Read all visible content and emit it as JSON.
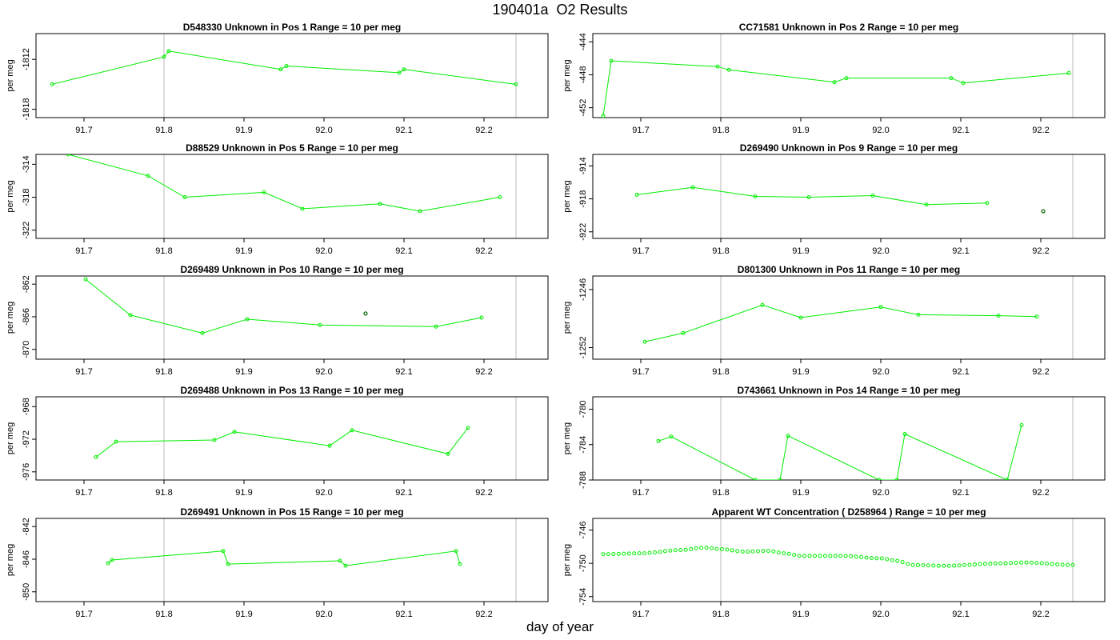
{
  "title": "190401a  O2 Results",
  "xlabel": "day of year",
  "colors": {
    "series": "#00ee00",
    "outlier": "#006400",
    "axis": "#000000",
    "refline": "#bbbbbb"
  },
  "chart_data": [
    {
      "type": "line",
      "sample_id": "D548330",
      "label": "Unknown in Pos 1",
      "range_text": "Range = 10 per meg",
      "ylabel": "per meg",
      "xlim": [
        91.64,
        92.28
      ],
      "ylim": [
        -1819,
        -1808.9
      ],
      "xticks": [
        91.7,
        91.8,
        91.9,
        92.0,
        92.1,
        92.2
      ],
      "yticks": [
        -1812,
        -1818
      ],
      "ref_x": [
        91.8,
        92.24
      ],
      "points": [
        [
          91.66,
          -1815
        ],
        [
          91.8,
          -1811.7
        ],
        [
          91.806,
          -1811
        ],
        [
          91.946,
          -1813.2
        ],
        [
          91.953,
          -1812.8
        ],
        [
          92.094,
          -1813.6
        ],
        [
          92.1,
          -1813.2
        ],
        [
          92.24,
          -1815
        ]
      ],
      "outliers": []
    },
    {
      "type": "line",
      "sample_id": "CC71581",
      "label": "Unknown in Pos 2",
      "range_text": "Range = 10 per meg",
      "ylabel": "per meg",
      "xlim": [
        91.64,
        92.28
      ],
      "ylim": [
        -453.2,
        -443
      ],
      "xticks": [
        91.7,
        91.8,
        91.9,
        92.0,
        92.1,
        92.2
      ],
      "yticks": [
        -444,
        -448,
        -452
      ],
      "ref_x": [
        91.8,
        92.24
      ],
      "points": [
        [
          91.653,
          -453
        ],
        [
          91.663,
          -446.3
        ],
        [
          91.796,
          -447
        ],
        [
          91.81,
          -447.4
        ],
        [
          91.942,
          -448.9
        ],
        [
          91.957,
          -448.4
        ],
        [
          92.088,
          -448.4
        ],
        [
          92.103,
          -449
        ],
        [
          92.235,
          -447.8
        ]
      ],
      "outliers": []
    },
    {
      "type": "line",
      "sample_id": "D88529",
      "label": "Unknown in Pos 5",
      "range_text": "Range = 10 per meg",
      "ylabel": "per meg",
      "xlim": [
        91.64,
        92.28
      ],
      "ylim": [
        -323,
        -312.8
      ],
      "xticks": [
        91.7,
        91.8,
        91.9,
        92.0,
        92.1,
        92.2
      ],
      "yticks": [
        -314,
        -318,
        -322
      ],
      "ref_x": [
        91.8,
        92.24
      ],
      "points": [
        [
          91.68,
          -312.8
        ],
        [
          91.78,
          -315.4
        ],
        [
          91.826,
          -318
        ],
        [
          91.925,
          -317.4
        ],
        [
          91.973,
          -319.4
        ],
        [
          92.07,
          -318.8
        ],
        [
          92.12,
          -319.7
        ],
        [
          92.22,
          -318
        ]
      ],
      "outliers": []
    },
    {
      "type": "line",
      "sample_id": "D269490",
      "label": "Unknown in Pos 9",
      "range_text": "Range = 10 per meg",
      "ylabel": "per meg",
      "xlim": [
        91.64,
        92.28
      ],
      "ylim": [
        -922.8,
        -912.6
      ],
      "xticks": [
        91.7,
        91.8,
        91.9,
        92.0,
        92.1,
        92.2
      ],
      "yticks": [
        -914,
        -918,
        -922
      ],
      "ref_x": [
        91.8,
        92.24
      ],
      "points": [
        [
          91.695,
          -917.5
        ],
        [
          91.765,
          -916.6
        ],
        [
          91.843,
          -917.7
        ],
        [
          91.91,
          -917.8
        ],
        [
          91.99,
          -917.6
        ],
        [
          92.057,
          -918.7
        ],
        [
          92.133,
          -918.5
        ]
      ],
      "outliers": [
        [
          92.203,
          -919.5
        ]
      ]
    },
    {
      "type": "line",
      "sample_id": "D269489",
      "label": "Unknown in Pos 10",
      "range_text": "Range = 10 per meg",
      "ylabel": "per meg",
      "xlim": [
        91.64,
        92.28
      ],
      "ylim": [
        -871.2,
        -861
      ],
      "xticks": [
        91.7,
        91.8,
        91.9,
        92.0,
        92.1,
        92.2
      ],
      "yticks": [
        -862,
        -866,
        -870
      ],
      "ref_x": [
        91.8,
        92.24
      ],
      "points": [
        [
          91.702,
          -861.4
        ],
        [
          91.758,
          -865.8
        ],
        [
          91.848,
          -868
        ],
        [
          91.904,
          -866.3
        ],
        [
          91.995,
          -867
        ],
        [
          92.14,
          -867.2
        ],
        [
          92.197,
          -866.1
        ]
      ],
      "outliers": [
        [
          92.052,
          -865.6
        ]
      ]
    },
    {
      "type": "line",
      "sample_id": "D801300",
      "label": "Unknown in Pos 11",
      "range_text": "Range = 10 per meg",
      "ylabel": "per meg",
      "xlim": [
        91.64,
        92.28
      ],
      "ylim": [
        -1253.2,
        -1244.6
      ],
      "xticks": [
        91.7,
        91.8,
        91.9,
        92.0,
        92.1,
        92.2
      ],
      "yticks": [
        -1246,
        -1252
      ],
      "ref_x": [
        91.8,
        92.24
      ],
      "points": [
        [
          91.705,
          -1251.4
        ],
        [
          91.753,
          -1250.5
        ],
        [
          91.852,
          -1247.6
        ],
        [
          91.9,
          -1248.9
        ],
        [
          92.0,
          -1247.8
        ],
        [
          92.047,
          -1248.6
        ],
        [
          92.147,
          -1248.7
        ],
        [
          92.195,
          -1248.8
        ]
      ],
      "outliers": []
    },
    {
      "type": "line",
      "sample_id": "D269488",
      "label": "Unknown in Pos 13",
      "range_text": "Range = 10 per meg",
      "ylabel": "per meg",
      "xlim": [
        91.64,
        92.28
      ],
      "ylim": [
        -977,
        -966.8
      ],
      "xticks": [
        91.7,
        91.8,
        91.9,
        92.0,
        92.1,
        92.2
      ],
      "yticks": [
        -968,
        -972,
        -976
      ],
      "ref_x": [
        91.8,
        92.24
      ],
      "points": [
        [
          91.715,
          -974.2
        ],
        [
          91.74,
          -972.3
        ],
        [
          91.863,
          -972.1
        ],
        [
          91.888,
          -971.1
        ],
        [
          92.007,
          -972.8
        ],
        [
          92.035,
          -970.9
        ],
        [
          92.155,
          -973.8
        ],
        [
          92.18,
          -970.6
        ]
      ],
      "outliers": []
    },
    {
      "type": "line",
      "sample_id": "D743661",
      "label": "Unknown in Pos 14",
      "range_text": "Range = 10 per meg",
      "ylabel": "per meg",
      "xlim": [
        91.64,
        92.28
      ],
      "ylim": [
        -788,
        -778.6
      ],
      "xticks": [
        91.7,
        91.8,
        91.9,
        92.0,
        92.1,
        92.2
      ],
      "yticks": [
        -780,
        -784,
        -788
      ],
      "ref_x": [
        91.8,
        92.24
      ],
      "points": [
        [
          91.722,
          -783.6
        ],
        [
          91.738,
          -783.1
        ],
        [
          91.843,
          -788
        ],
        [
          91.874,
          -788
        ],
        [
          91.884,
          -783
        ],
        [
          91.998,
          -788
        ],
        [
          92.02,
          -788
        ],
        [
          92.03,
          -782.8
        ],
        [
          92.158,
          -788
        ],
        [
          92.176,
          -781.8
        ]
      ],
      "outliers": []
    },
    {
      "type": "line",
      "sample_id": "D269491",
      "label": "Unknown in Pos 15",
      "range_text": "Range = 10 per meg",
      "ylabel": "per meg",
      "xlim": [
        91.64,
        92.28
      ],
      "ylim": [
        -851.2,
        -841
      ],
      "xticks": [
        91.7,
        91.8,
        91.9,
        92.0,
        92.1,
        92.2
      ],
      "yticks": [
        -842,
        -846,
        -850
      ],
      "ref_x": [
        91.8,
        92.24
      ],
      "points": [
        [
          91.73,
          -846.5
        ],
        [
          91.735,
          -846.1
        ],
        [
          91.874,
          -845
        ],
        [
          91.88,
          -846.6
        ],
        [
          92.02,
          -846.2
        ],
        [
          92.027,
          -846.8
        ],
        [
          92.165,
          -845
        ],
        [
          92.17,
          -846.6
        ]
      ],
      "outliers": []
    },
    {
      "type": "line",
      "sample_id": "D258964",
      "label": "Apparent WT Concentration ( D258964 )",
      "range_text": "Range = 10 per meg",
      "ylabel": "per meg",
      "xlim": [
        91.64,
        92.28
      ],
      "ylim": [
        -754.6,
        -744.6
      ],
      "xticks": [
        91.7,
        91.8,
        91.9,
        92.0,
        92.1,
        92.2
      ],
      "yticks": [
        -746,
        -750,
        -754
      ],
      "ref_x": [
        91.8,
        92.24
      ],
      "curve": {
        "x_start": 91.653,
        "x_end": 92.24,
        "n": 92,
        "knots": [
          [
            91.653,
            -748.9
          ],
          [
            91.7,
            -748.8
          ],
          [
            91.75,
            -748.4
          ],
          [
            91.78,
            -748.1
          ],
          [
            91.8,
            -748.3
          ],
          [
            91.83,
            -748.6
          ],
          [
            91.86,
            -748.5
          ],
          [
            91.88,
            -748.8
          ],
          [
            91.9,
            -749.1
          ],
          [
            91.95,
            -749.1
          ],
          [
            92.0,
            -749.4
          ],
          [
            92.02,
            -749.7
          ],
          [
            92.04,
            -750.2
          ],
          [
            92.08,
            -750.3
          ],
          [
            92.15,
            -750
          ],
          [
            92.18,
            -749.9
          ],
          [
            92.24,
            -750.2
          ]
        ]
      },
      "outliers": []
    }
  ]
}
